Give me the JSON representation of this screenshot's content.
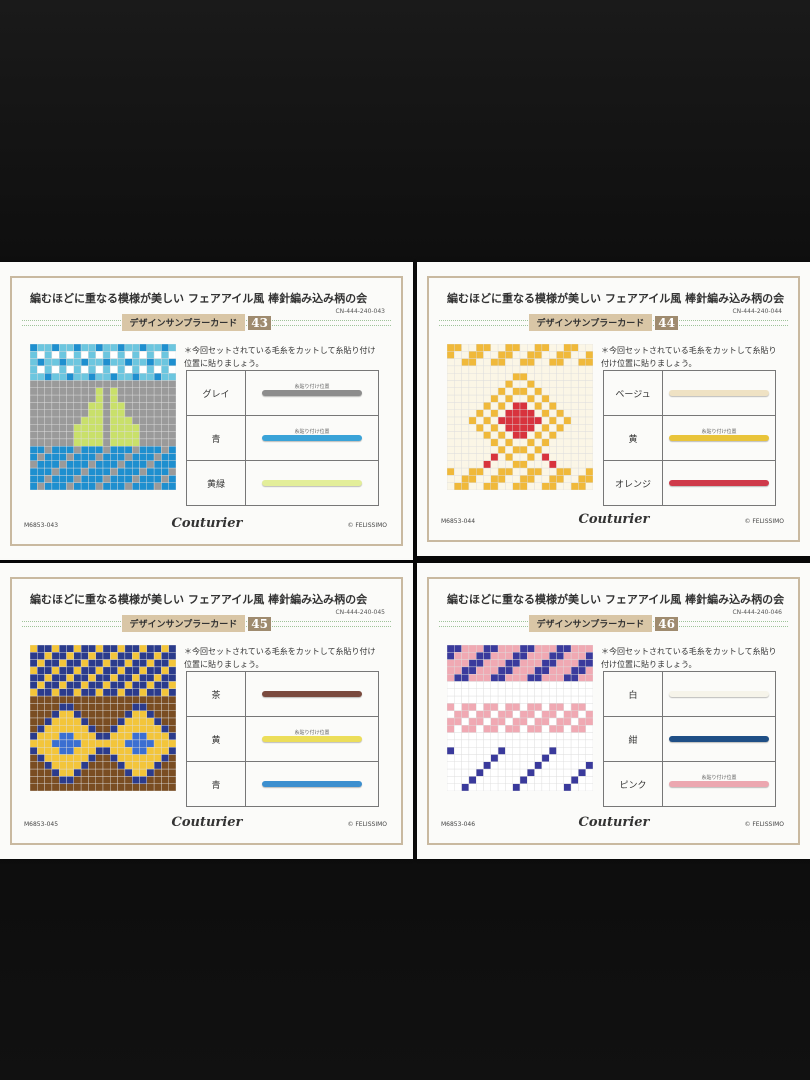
{
  "cards": [
    {
      "title": "編むほどに重なる模様が美しい フェアアイル風 棒針編み込み柄の会",
      "code": "CN-444-240-043",
      "label": "デザインサンプラーカード",
      "number": "43",
      "instruction": "＊今回セットされている毛糸をカットして糸貼り付け位置に貼りましょう。",
      "yarns": [
        {
          "name": "グレイ",
          "color": "#8d8d8d",
          "note": "糸貼り付け位置"
        },
        {
          "name": "青",
          "color": "#3aa3d8",
          "note": "糸貼り付け位置"
        },
        {
          "name": "黄緑",
          "color": "#e3ee9a"
        }
      ],
      "model": "M6853-043",
      "brand": "Couturier",
      "copyright": "© FELISSIMO"
    },
    {
      "title": "編むほどに重なる模様が美しい フェアアイル風 棒針編み込み柄の会",
      "code": "CN-444-240-044",
      "label": "デザインサンプラーカード",
      "number": "44",
      "instruction": "＊今回セットされている毛糸をカットして糸貼り付け位置に貼りましょう。",
      "yarns": [
        {
          "name": "ベージュ",
          "color": "#efe2c4"
        },
        {
          "name": "黄",
          "color": "#e9c43a",
          "note": "糸貼り付け位置"
        },
        {
          "name": "オレンジ",
          "color": "#cf3a4a"
        }
      ],
      "model": "M6853-044",
      "brand": "Couturier",
      "copyright": "© FELISSIMO"
    },
    {
      "title": "編むほどに重なる模様が美しい フェアアイル風 棒針編み込み柄の会",
      "code": "CN-444-240-045",
      "label": "デザインサンプラーカード",
      "number": "45",
      "instruction": "＊今回セットされている毛糸をカットして糸貼り付け位置に貼りましょう。",
      "yarns": [
        {
          "name": "茶",
          "color": "#7a4a3e"
        },
        {
          "name": "黄",
          "color": "#ecde5a",
          "note": "糸貼り付け位置"
        },
        {
          "name": "青",
          "color": "#3c8fcf"
        }
      ],
      "model": "M6853-045",
      "brand": "Couturier",
      "copyright": "© FELISSIMO"
    },
    {
      "title": "編むほどに重なる模様が美しい フェアアイル風 棒針編み込み柄の会",
      "code": "CN-444-240-046",
      "label": "デザインサンプラーカード",
      "number": "46",
      "instruction": "＊今回セットされている毛糸をカットして糸貼り付け位置に貼りましょう。",
      "yarns": [
        {
          "name": "白",
          "color": "#f6f4ea"
        },
        {
          "name": "紺",
          "color": "#1f4f86"
        },
        {
          "name": "ピンク",
          "color": "#eca7b0",
          "note": "糸貼り付け位置"
        }
      ],
      "model": "M6853-046",
      "brand": "Couturier",
      "copyright": "© FELISSIMO"
    }
  ]
}
